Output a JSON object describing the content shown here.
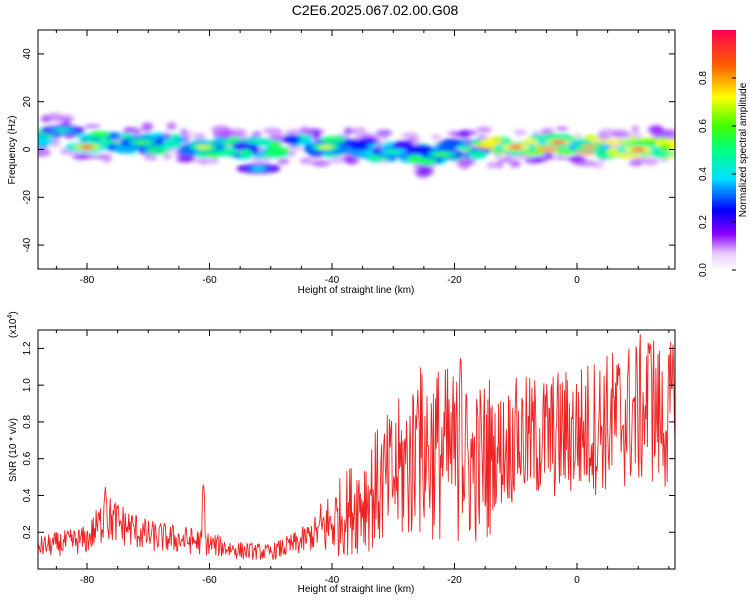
{
  "title": "C2E6.2025.067.02.00.G08",
  "colorbar": {
    "label": "Normalized spectral amplitude",
    "ticks": [
      "0.0",
      "0.2",
      "0.4",
      "0.6",
      "0.8"
    ],
    "tick_values": [
      0.0,
      0.2,
      0.4,
      0.6,
      0.8
    ],
    "range": [
      0,
      1
    ]
  },
  "chart_data": [
    {
      "type": "heatmap",
      "xlabel": "Height of straight line (km)",
      "ylabel": "Frequency (Hz)",
      "xlim": [
        -88,
        16
      ],
      "ylim": [
        -50,
        50
      ],
      "xticks": [
        -80,
        -60,
        -40,
        -20,
        0
      ],
      "xtick_labels": [
        "-80",
        "-60",
        "-40",
        "-20",
        "0"
      ],
      "yticks": [
        -40,
        -20,
        0,
        20,
        40
      ],
      "ytick_labels": [
        "-40",
        "-20",
        "0",
        "20",
        "40"
      ],
      "band_center": [
        [
          -88,
          5
        ],
        [
          -85,
          6
        ],
        [
          -80,
          3
        ],
        [
          -75,
          3
        ],
        [
          -70,
          3
        ],
        [
          -65,
          2
        ],
        [
          -60,
          1
        ],
        [
          -55,
          0
        ],
        [
          -50,
          1
        ],
        [
          -45,
          2
        ],
        [
          -40,
          1
        ],
        [
          -35,
          0
        ],
        [
          -30,
          -1
        ],
        [
          -25,
          -2
        ],
        [
          -20,
          0
        ],
        [
          -15,
          1
        ],
        [
          -10,
          1
        ],
        [
          -5,
          2
        ],
        [
          0,
          2
        ],
        [
          5,
          1
        ],
        [
          10,
          1
        ],
        [
          16,
          1
        ]
      ],
      "blobs": [
        {
          "x": -84,
          "y": 8,
          "amp": 0.45
        },
        {
          "x": -80,
          "y": 1,
          "amp": 0.9
        },
        {
          "x": -71,
          "y": 3,
          "amp": 0.6
        },
        {
          "x": -61,
          "y": 1,
          "amp": 0.7
        },
        {
          "x": -52,
          "y": -8,
          "amp": 0.4
        },
        {
          "x": -41,
          "y": 1,
          "amp": 0.7
        },
        {
          "x": -30,
          "y": -1,
          "amp": 0.5
        },
        {
          "x": -22,
          "y": -2,
          "amp": 0.6
        },
        {
          "x": -10,
          "y": 1,
          "amp": 0.95
        },
        {
          "x": -3,
          "y": 3,
          "amp": 0.9
        },
        {
          "x": 2,
          "y": 1,
          "amp": 0.8
        },
        {
          "x": 10,
          "y": 0,
          "amp": 0.95
        }
      ]
    },
    {
      "type": "line",
      "xlabel": "Height of straight line (km)",
      "ylabel": "SNR (10 * v/v)",
      "multiplier_label": "(x10",
      "multiplier_exp": "4",
      "xlim": [
        -88,
        16
      ],
      "ylim": [
        0,
        1.3
      ],
      "xticks": [
        -80,
        -60,
        -40,
        -20,
        0
      ],
      "xtick_labels": [
        "-80",
        "-60",
        "-40",
        "-20",
        "0"
      ],
      "yticks": [
        0.2,
        0.4,
        0.6,
        0.8,
        1.0,
        1.2
      ],
      "ytick_labels": [
        "0.2",
        "0.4",
        "0.6",
        "0.8",
        "1.0",
        "1.2"
      ],
      "line_color": "#ee2222",
      "envelope": [
        [
          -88,
          0.12
        ],
        [
          -80,
          0.16
        ],
        [
          -77,
          0.28
        ],
        [
          -70,
          0.18
        ],
        [
          -62,
          0.15
        ],
        [
          -55,
          0.1
        ],
        [
          -50,
          0.09
        ],
        [
          -45,
          0.15
        ],
        [
          -40,
          0.25
        ],
        [
          -35,
          0.38
        ],
        [
          -30,
          0.5
        ],
        [
          -25,
          0.65
        ],
        [
          -20,
          0.62
        ],
        [
          -17,
          0.55
        ],
        [
          -14,
          0.62
        ],
        [
          -10,
          0.7
        ],
        [
          -5,
          0.72
        ],
        [
          0,
          0.75
        ],
        [
          5,
          0.8
        ],
        [
          10,
          0.85
        ],
        [
          12,
          0.9
        ],
        [
          14,
          0.8
        ],
        [
          16,
          0.85
        ]
      ],
      "peaks": [
        [
          -77,
          0.45
        ],
        [
          -61,
          0.48
        ],
        [
          -26,
          0.98
        ],
        [
          -19,
          1.21
        ],
        [
          -10,
          0.95
        ],
        [
          12,
          1.29
        ],
        [
          15.5,
          1.02
        ]
      ]
    }
  ]
}
